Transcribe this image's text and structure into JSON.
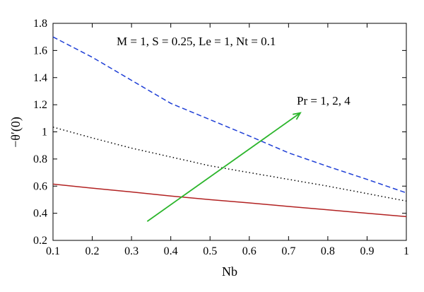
{
  "chart_data": {
    "type": "line",
    "xlabel": "Nb",
    "ylabel": "−θ′(0)",
    "xlim": [
      0.1,
      1.0
    ],
    "ylim": [
      0.2,
      1.8
    ],
    "xticks": [
      0.1,
      0.2,
      0.3,
      0.4,
      0.5,
      0.6,
      0.7,
      0.8,
      0.9,
      1
    ],
    "yticks": [
      0.2,
      0.4,
      0.6,
      0.8,
      1,
      1.2,
      1.4,
      1.6,
      1.8
    ],
    "xtick_labels": [
      "0.1",
      "0.2",
      "0.3",
      "0.4",
      "0.5",
      "0.6",
      "0.7",
      "0.8",
      "0.9",
      "1"
    ],
    "ytick_labels": [
      "0.2",
      "0.4",
      "0.6",
      "0.8",
      "1",
      "1.2",
      "1.4",
      "1.6",
      "1.8"
    ],
    "grid": false,
    "annotations": {
      "params": "M = 1, S = 0.25, Le = 1, Nt = 0.1",
      "arrow_label": "Pr = 1, 2, 4"
    },
    "arrow": {
      "from": [
        0.34,
        0.34
      ],
      "to": [
        0.73,
        1.14
      ],
      "color": "#2bb52b"
    },
    "series": [
      {
        "x": [
          0.1,
          0.2,
          0.3,
          0.4,
          0.5,
          0.6,
          0.7,
          0.8,
          0.9,
          1.0
        ],
        "values": [
          0.615,
          0.585,
          0.557,
          0.527,
          0.5,
          0.476,
          0.45,
          0.425,
          0.4,
          0.375
        ],
        "color": "#b22222",
        "dash": "solid"
      },
      {
        "x": [
          0.1,
          0.2,
          0.3,
          0.4,
          0.5,
          0.6,
          0.7,
          0.8,
          0.9,
          1.0
        ],
        "values": [
          1.035,
          0.955,
          0.88,
          0.815,
          0.75,
          0.7,
          0.65,
          0.6,
          0.545,
          0.49
        ],
        "color": "#000000",
        "dash": "dotted"
      },
      {
        "x": [
          0.1,
          0.2,
          0.3,
          0.4,
          0.5,
          0.6,
          0.7,
          0.8,
          0.9,
          1.0
        ],
        "values": [
          1.7,
          1.55,
          1.38,
          1.21,
          1.09,
          0.97,
          0.845,
          0.745,
          0.65,
          0.55
        ],
        "color": "#1f3fd6",
        "dash": "dashed"
      }
    ]
  }
}
